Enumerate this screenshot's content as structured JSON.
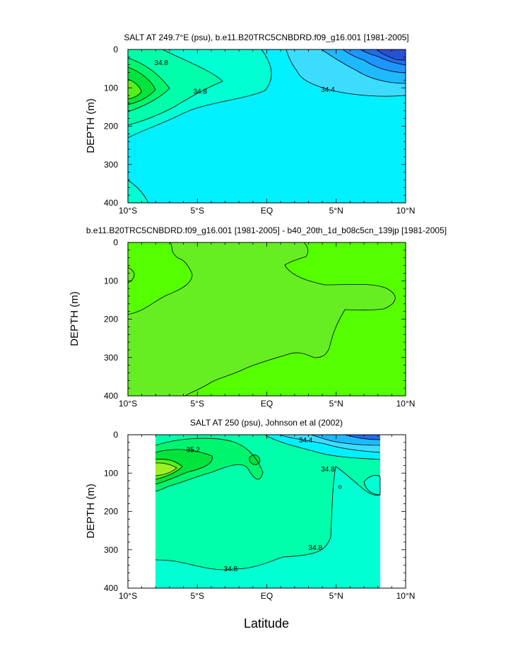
{
  "figure": {
    "xlabel": "Latitude",
    "colors": {
      "c344": "#00f0ff",
      "c346": "#00ffd2",
      "c348": "#00ffaa",
      "c350": "#00f56e",
      "c352": "#00e33c",
      "c354": "#55ef19",
      "c356": "#9cf027",
      "c342": "#3cdcff",
      "c340": "#1eb9ff",
      "c338": "#1e96ff",
      "c336": "#1f6fee",
      "c334": "#2850d2",
      "diff_high": "#55ff00",
      "diff_low": "#66ee22"
    }
  },
  "chart_data": [
    {
      "type": "contour",
      "title": "SALT AT 249.7°E (psu), b.e11.B20TRC5CNBDRD.f09_g16.001 [1981-2005]",
      "ylabel": "DEPTH (m)",
      "xlim": [
        -10,
        10
      ],
      "ylim": [
        400,
        0
      ],
      "x_ticks": [
        -10,
        -5,
        0,
        5,
        10
      ],
      "x_tick_labels": [
        "10°S",
        "5°S",
        "EQ",
        "5°N",
        "10°N"
      ],
      "y_ticks": [
        0,
        100,
        200,
        300,
        400
      ],
      "y_tick_labels": [
        "0",
        "100",
        "200",
        "300",
        "400"
      ],
      "contour_labels": [
        {
          "text": "34.8",
          "x": -7.6,
          "y": 35
        },
        {
          "text": "34.8",
          "x": -4.8,
          "y": 110
        },
        {
          "text": "34.4",
          "x": 4.4,
          "y": 105
        }
      ]
    },
    {
      "type": "contour",
      "title": "b.e11.B20TRC5CNBDRD.f09_g16.001 [1981-2005] - b40_20th_1d_b08c5cn_139jp [1981-2005]",
      "ylabel": "DEPTH (m)",
      "xlim": [
        -10,
        10
      ],
      "ylim": [
        400,
        0
      ],
      "x_ticks": [
        -10,
        -5,
        0,
        5,
        10
      ],
      "x_tick_labels": [
        "10°S",
        "5°S",
        "EQ",
        "5°N",
        "10°N"
      ],
      "y_ticks": [
        0,
        100,
        200,
        300,
        400
      ],
      "y_tick_labels": [
        "0",
        "100",
        "200",
        "300",
        "400"
      ],
      "contour_labels": []
    },
    {
      "type": "contour",
      "title": "SALT AT 250 (psu), Johnson et al (2002)",
      "ylabel": "DEPTH (m)",
      "xlim": [
        -10,
        10
      ],
      "ylim": [
        400,
        0
      ],
      "x_ticks": [
        -10,
        -5,
        0,
        5,
        10
      ],
      "x_tick_labels": [
        "10°S",
        "5°S",
        "EQ",
        "5°N",
        "10°N"
      ],
      "y_ticks": [
        0,
        100,
        200,
        300,
        400
      ],
      "y_tick_labels": [
        "0",
        "100",
        "200",
        "300",
        "400"
      ],
      "data_extent_x": [
        -8,
        8.2
      ],
      "contour_labels": [
        {
          "text": "35.2",
          "x": -5.3,
          "y": 40
        },
        {
          "text": "34.4",
          "x": 2.8,
          "y": 15
        },
        {
          "text": "34.8",
          "x": 4.4,
          "y": 90
        },
        {
          "text": "34.8",
          "x": 3.5,
          "y": 295
        },
        {
          "text": "34.8",
          "x": -2.6,
          "y": 350
        }
      ]
    }
  ]
}
